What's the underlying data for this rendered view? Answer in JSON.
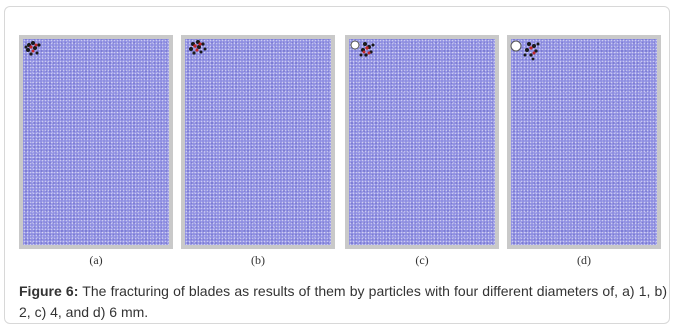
{
  "figure": {
    "panels": [
      {
        "label": "(a)",
        "particle": false
      },
      {
        "label": "(b)",
        "particle": false
      },
      {
        "label": "(c)",
        "particle": true
      },
      {
        "label": "(d)",
        "particle": true
      }
    ],
    "caption": {
      "label": "Figure 6:",
      "text": " The fracturing of blades as results of them by particles with four different diameters of, a) 1, b) 2, c) 4, and d) 6 mm."
    }
  }
}
